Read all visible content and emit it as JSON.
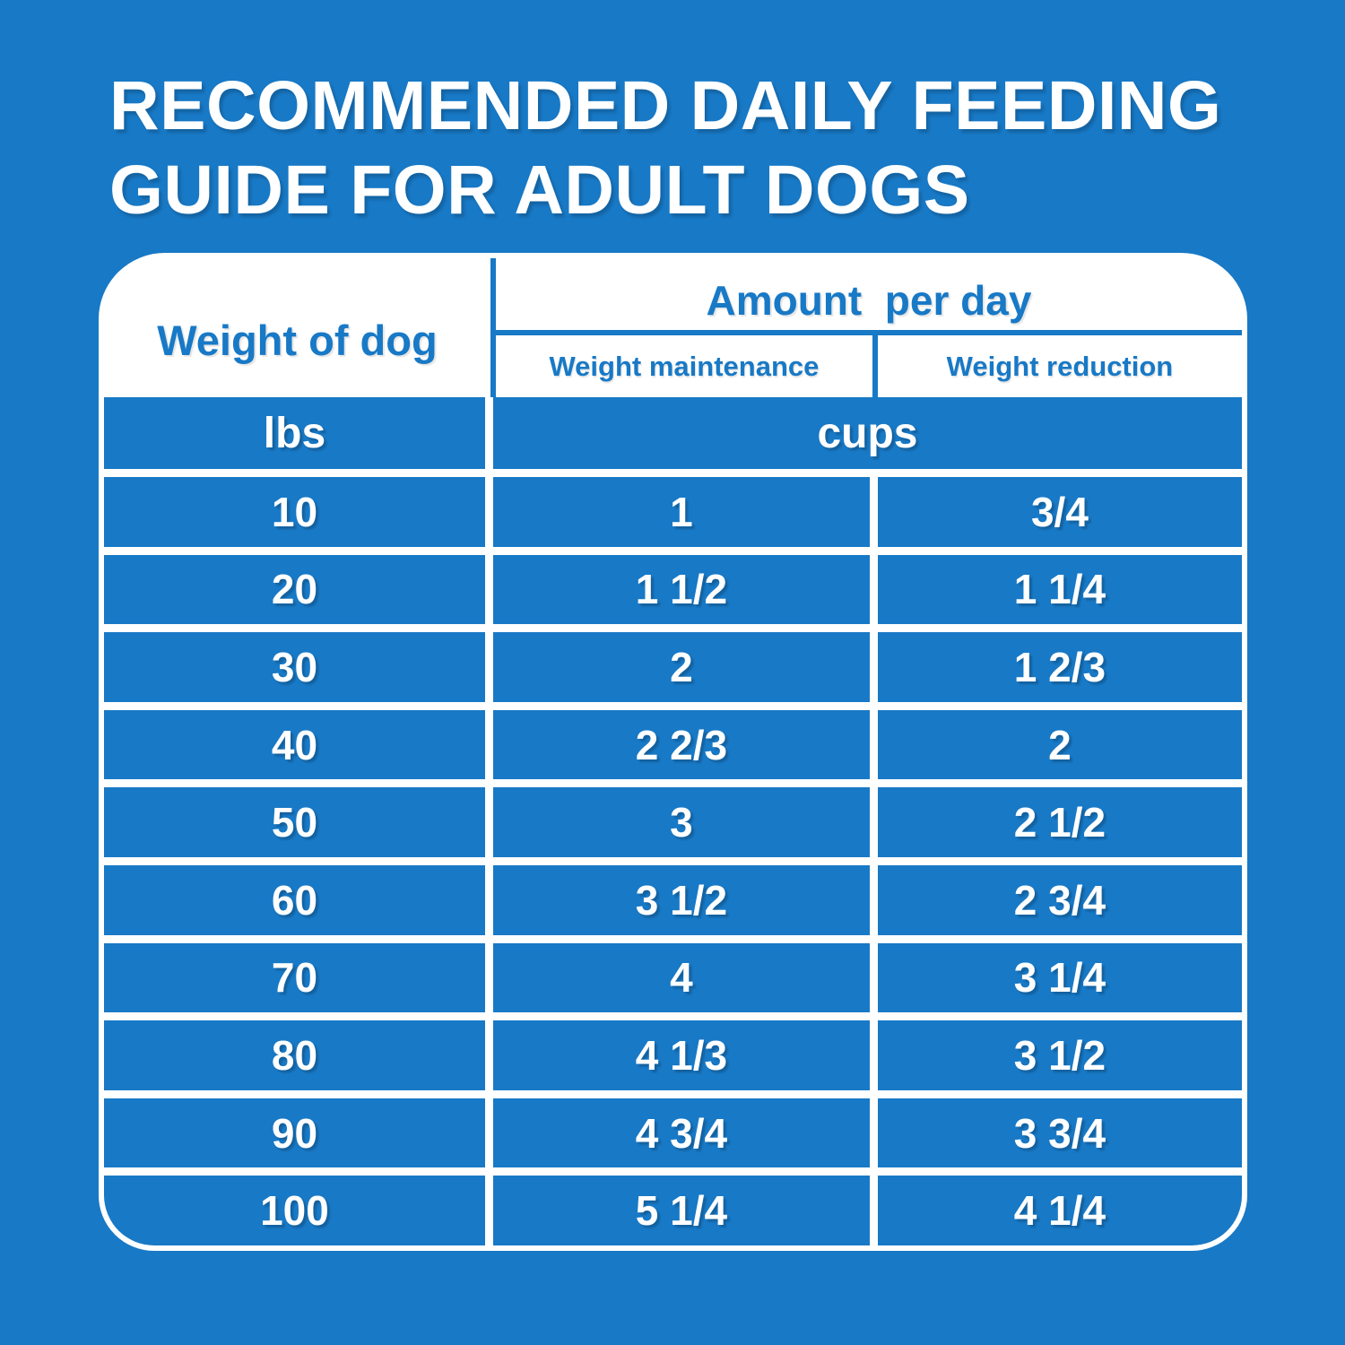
{
  "page": {
    "background_color": "#1879C6",
    "accent_color": "#1879C6",
    "text_color": "#FFFFFF"
  },
  "title": {
    "line1": "RECOMMENDED DAILY FEEDING",
    "line2": "GUIDE FOR ADULT DOGS"
  },
  "table": {
    "weight_header": "Weight of dog",
    "amount_header": "Amount  per day",
    "maintenance_header": "Weight maintenance",
    "reduction_header": "Weight reduction",
    "weight_unit": "lbs",
    "amount_unit": "cups"
  },
  "chart_data": {
    "type": "table",
    "title": "RECOMMENDED DAILY FEEDING GUIDE FOR ADULT DOGS",
    "columns": [
      "Weight of dog (lbs)",
      "Amount per day - Weight maintenance (cups)",
      "Amount per day - Weight reduction (cups)"
    ],
    "rows": [
      [
        "10",
        "1",
        "3/4"
      ],
      [
        "20",
        "1 1/2",
        "1 1/4"
      ],
      [
        "30",
        "2",
        "1 2/3"
      ],
      [
        "40",
        "2 2/3",
        "2"
      ],
      [
        "50",
        "3",
        "2 1/2"
      ],
      [
        "60",
        "3 1/2",
        "2 3/4"
      ],
      [
        "70",
        "4",
        "3 1/4"
      ],
      [
        "80",
        "4 1/3",
        "3 1/2"
      ],
      [
        "90",
        "4 3/4",
        "3 3/4"
      ],
      [
        "100",
        "5 1/4",
        "4 1/4"
      ]
    ]
  }
}
